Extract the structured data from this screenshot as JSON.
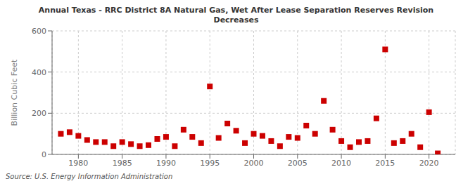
{
  "chart_data": {
    "type": "scatter",
    "title": "Annual Texas - RRC District 8A Natural Gas, Wet After Lease Separation Reserves Revision\nDecreases",
    "ylabel": "Billion Cubic Feet",
    "source": "Source: U.S. Energy Information Administration",
    "color": "#cc0000",
    "marker": "square",
    "grid": true,
    "xlim": [
      1977,
      2023
    ],
    "xticks": [
      1980,
      1985,
      1990,
      1995,
      2000,
      2005,
      2010,
      2015,
      2020
    ],
    "ylim": [
      0,
      600
    ],
    "yticks": [
      0,
      200,
      400,
      600
    ],
    "x": [
      1978,
      1979,
      1980,
      1981,
      1982,
      1983,
      1984,
      1985,
      1986,
      1987,
      1988,
      1989,
      1990,
      1991,
      1992,
      1993,
      1994,
      1995,
      1996,
      1997,
      1998,
      1999,
      2000,
      2001,
      2002,
      2003,
      2004,
      2005,
      2006,
      2007,
      2008,
      2009,
      2010,
      2011,
      2012,
      2013,
      2014,
      2015,
      2016,
      2017,
      2018,
      2019,
      2020,
      2021
    ],
    "values": [
      100,
      108,
      90,
      70,
      60,
      60,
      40,
      60,
      50,
      40,
      45,
      75,
      85,
      40,
      120,
      85,
      55,
      330,
      80,
      150,
      115,
      55,
      100,
      90,
      65,
      40,
      85,
      80,
      140,
      100,
      260,
      120,
      65,
      35,
      60,
      65,
      175,
      510,
      55,
      65,
      100,
      35,
      205,
      5
    ]
  }
}
